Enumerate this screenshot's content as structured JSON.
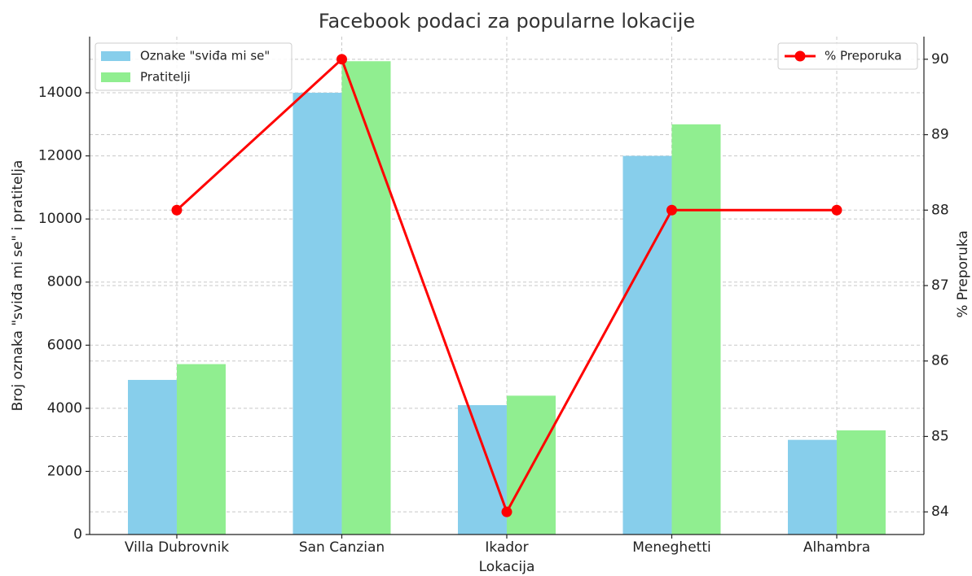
{
  "chart_data": {
    "type": "bar",
    "title": "Facebook podaci za popularne lokacije",
    "x_label": "Lokacija",
    "y_label": "Broj oznaka \"sviđa mi se\" i pratitelja",
    "y2_label": "% Preporuka",
    "categories": [
      "Villa Dubrovnik",
      "San Canzian",
      "Ikador",
      "Meneghetti",
      "Alhambra"
    ],
    "series": [
      {
        "name": "Oznake \"sviđa mi se\"",
        "color": "#87ceeb",
        "type": "bar",
        "values": [
          4900,
          14000,
          4100,
          12000,
          3000
        ]
      },
      {
        "name": "Pratitelji",
        "color": "#90ee90",
        "type": "bar",
        "values": [
          5400,
          15000,
          4400,
          13000,
          3300
        ]
      },
      {
        "name": "% Preporuka",
        "color": "#ff0000",
        "type": "line",
        "axis": "y2",
        "values": [
          88,
          90,
          84,
          88,
          88
        ]
      }
    ],
    "ylim": [
      0,
      15780
    ],
    "yticks": [
      0,
      2000,
      4000,
      6000,
      8000,
      10000,
      12000,
      14000
    ],
    "y2lim": [
      83.7,
      90.3
    ],
    "y2ticks": [
      84,
      85,
      86,
      87,
      88,
      89,
      90
    ],
    "grid": true,
    "legend": "upper left",
    "legend2": "upper right"
  }
}
